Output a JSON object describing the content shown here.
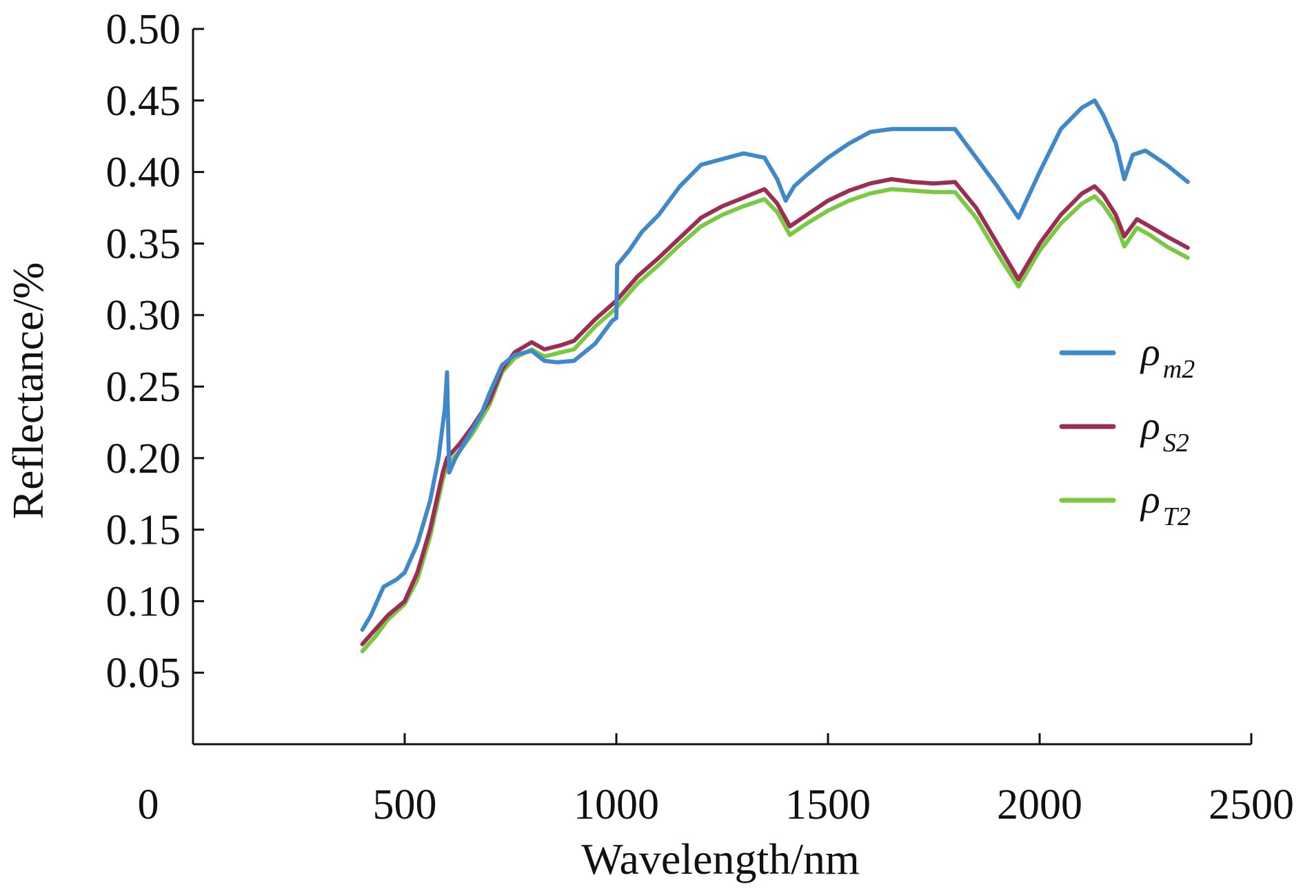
{
  "chart_data": {
    "type": "line",
    "xlabel": "Wavelength/nm",
    "ylabel": "Reflectance/%",
    "xlim": [
      0,
      2500
    ],
    "ylim": [
      0,
      0.5
    ],
    "x_ticks": [
      500,
      1000,
      1500,
      2000,
      2500
    ],
    "x_origin_label": "0",
    "y_ticks": [
      "0.05",
      "0.10",
      "0.15",
      "0.20",
      "0.25",
      "0.30",
      "0.35",
      "0.40",
      "0.45",
      "0.50"
    ],
    "grid": false,
    "legend": "right",
    "series": [
      {
        "symbol": "ρ",
        "subscript": "m2",
        "color": "#3f88c9",
        "points": [
          [
            400,
            0.08
          ],
          [
            420,
            0.09
          ],
          [
            450,
            0.11
          ],
          [
            480,
            0.115
          ],
          [
            500,
            0.12
          ],
          [
            530,
            0.14
          ],
          [
            560,
            0.17
          ],
          [
            580,
            0.2
          ],
          [
            595,
            0.235
          ],
          [
            600,
            0.26
          ],
          [
            605,
            0.19
          ],
          [
            620,
            0.2
          ],
          [
            650,
            0.215
          ],
          [
            680,
            0.23
          ],
          [
            700,
            0.245
          ],
          [
            730,
            0.265
          ],
          [
            760,
            0.272
          ],
          [
            800,
            0.275
          ],
          [
            830,
            0.268
          ],
          [
            860,
            0.267
          ],
          [
            900,
            0.268
          ],
          [
            950,
            0.28
          ],
          [
            990,
            0.296
          ],
          [
            1000,
            0.298
          ],
          [
            1002,
            0.335
          ],
          [
            1030,
            0.345
          ],
          [
            1060,
            0.358
          ],
          [
            1100,
            0.37
          ],
          [
            1150,
            0.39
          ],
          [
            1200,
            0.405
          ],
          [
            1250,
            0.409
          ],
          [
            1300,
            0.413
          ],
          [
            1350,
            0.41
          ],
          [
            1380,
            0.395
          ],
          [
            1400,
            0.38
          ],
          [
            1420,
            0.39
          ],
          [
            1450,
            0.398
          ],
          [
            1500,
            0.41
          ],
          [
            1550,
            0.42
          ],
          [
            1600,
            0.428
          ],
          [
            1650,
            0.43
          ],
          [
            1700,
            0.43
          ],
          [
            1750,
            0.43
          ],
          [
            1800,
            0.43
          ],
          [
            1850,
            0.41
          ],
          [
            1900,
            0.39
          ],
          [
            1950,
            0.368
          ],
          [
            2000,
            0.4
          ],
          [
            2050,
            0.43
          ],
          [
            2100,
            0.445
          ],
          [
            2130,
            0.45
          ],
          [
            2150,
            0.44
          ],
          [
            2180,
            0.42
          ],
          [
            2200,
            0.395
          ],
          [
            2220,
            0.412
          ],
          [
            2250,
            0.415
          ],
          [
            2300,
            0.405
          ],
          [
            2350,
            0.393
          ]
        ]
      },
      {
        "symbol": "ρ",
        "subscript": "S2",
        "color": "#9c2e54",
        "points": [
          [
            400,
            0.07
          ],
          [
            430,
            0.08
          ],
          [
            460,
            0.09
          ],
          [
            500,
            0.1
          ],
          [
            530,
            0.12
          ],
          [
            560,
            0.15
          ],
          [
            590,
            0.19
          ],
          [
            600,
            0.2
          ],
          [
            630,
            0.21
          ],
          [
            660,
            0.222
          ],
          [
            700,
            0.24
          ],
          [
            730,
            0.262
          ],
          [
            760,
            0.274
          ],
          [
            800,
            0.281
          ],
          [
            830,
            0.276
          ],
          [
            870,
            0.279
          ],
          [
            900,
            0.282
          ],
          [
            950,
            0.297
          ],
          [
            1000,
            0.31
          ],
          [
            1050,
            0.327
          ],
          [
            1100,
            0.34
          ],
          [
            1150,
            0.354
          ],
          [
            1200,
            0.368
          ],
          [
            1250,
            0.376
          ],
          [
            1300,
            0.382
          ],
          [
            1350,
            0.388
          ],
          [
            1380,
            0.378
          ],
          [
            1410,
            0.362
          ],
          [
            1450,
            0.37
          ],
          [
            1500,
            0.38
          ],
          [
            1550,
            0.387
          ],
          [
            1600,
            0.392
          ],
          [
            1650,
            0.395
          ],
          [
            1700,
            0.393
          ],
          [
            1750,
            0.392
          ],
          [
            1800,
            0.393
          ],
          [
            1850,
            0.375
          ],
          [
            1900,
            0.35
          ],
          [
            1950,
            0.325
          ],
          [
            2000,
            0.35
          ],
          [
            2050,
            0.37
          ],
          [
            2100,
            0.385
          ],
          [
            2130,
            0.39
          ],
          [
            2150,
            0.384
          ],
          [
            2180,
            0.37
          ],
          [
            2200,
            0.355
          ],
          [
            2230,
            0.367
          ],
          [
            2260,
            0.362
          ],
          [
            2300,
            0.355
          ],
          [
            2350,
            0.347
          ]
        ]
      },
      {
        "symbol": "ρ",
        "subscript": "T2",
        "color": "#7ac943",
        "points": [
          [
            400,
            0.065
          ],
          [
            430,
            0.075
          ],
          [
            460,
            0.087
          ],
          [
            500,
            0.098
          ],
          [
            530,
            0.115
          ],
          [
            560,
            0.145
          ],
          [
            590,
            0.185
          ],
          [
            600,
            0.195
          ],
          [
            630,
            0.205
          ],
          [
            660,
            0.217
          ],
          [
            700,
            0.237
          ],
          [
            730,
            0.26
          ],
          [
            760,
            0.27
          ],
          [
            800,
            0.276
          ],
          [
            830,
            0.271
          ],
          [
            870,
            0.274
          ],
          [
            900,
            0.276
          ],
          [
            950,
            0.292
          ],
          [
            1000,
            0.305
          ],
          [
            1050,
            0.322
          ],
          [
            1100,
            0.335
          ],
          [
            1150,
            0.349
          ],
          [
            1200,
            0.362
          ],
          [
            1250,
            0.37
          ],
          [
            1300,
            0.376
          ],
          [
            1350,
            0.381
          ],
          [
            1380,
            0.372
          ],
          [
            1410,
            0.356
          ],
          [
            1450,
            0.364
          ],
          [
            1500,
            0.373
          ],
          [
            1550,
            0.38
          ],
          [
            1600,
            0.385
          ],
          [
            1650,
            0.388
          ],
          [
            1700,
            0.387
          ],
          [
            1750,
            0.386
          ],
          [
            1800,
            0.386
          ],
          [
            1850,
            0.368
          ],
          [
            1900,
            0.343
          ],
          [
            1950,
            0.32
          ],
          [
            2000,
            0.345
          ],
          [
            2050,
            0.364
          ],
          [
            2100,
            0.378
          ],
          [
            2130,
            0.383
          ],
          [
            2150,
            0.377
          ],
          [
            2180,
            0.364
          ],
          [
            2200,
            0.348
          ],
          [
            2230,
            0.361
          ],
          [
            2260,
            0.356
          ],
          [
            2300,
            0.348
          ],
          [
            2350,
            0.34
          ]
        ]
      }
    ]
  }
}
